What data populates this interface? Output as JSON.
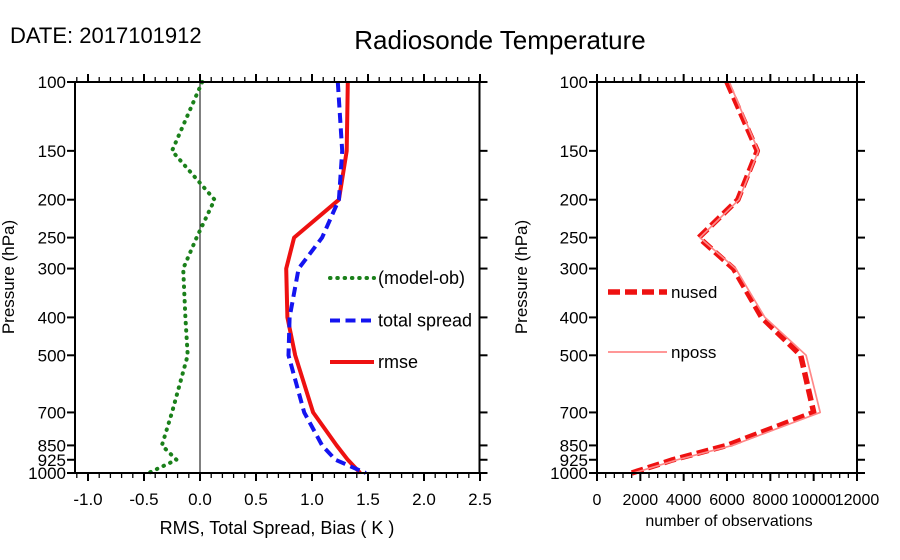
{
  "header": {
    "date_label": "DATE: 2017101912",
    "title": "Radiosonde Temperature"
  },
  "chart_data": [
    {
      "type": "line",
      "panel": "left",
      "title": "",
      "xlabel": "RMS, Total Spread, Bias ( K )",
      "ylabel": "Pressure (hPa)",
      "y_scale": "log",
      "ylim": [
        100,
        1000
      ],
      "xlim": [
        -1.12,
        2.51
      ],
      "zero_line": true,
      "pressure_levels": [
        100,
        150,
        200,
        250,
        300,
        400,
        500,
        700,
        850,
        925,
        1000
      ],
      "xticks": [
        -1.0,
        -0.5,
        0.0,
        0.5,
        1.0,
        1.5,
        2.0,
        2.5
      ],
      "xtick_labels": [
        "-1.0",
        "-0.5",
        "0.0",
        "0.5",
        "1.0",
        "1.5",
        "2.0",
        "2.5"
      ],
      "legend_position": "inside-center-right",
      "series": [
        {
          "name": "(model-ob)",
          "style": "dotted",
          "color": "#1a801a",
          "values": [
            0.02,
            -0.25,
            0.13,
            -0.03,
            -0.15,
            -0.13,
            -0.11,
            -0.25,
            -0.34,
            -0.21,
            -0.46
          ]
        },
        {
          "name": "total spread",
          "style": "dashed",
          "color": "#1414f0",
          "values": [
            1.23,
            1.27,
            1.24,
            1.09,
            0.88,
            0.8,
            0.79,
            0.93,
            1.09,
            1.21,
            1.48
          ]
        },
        {
          "name": "rmse",
          "style": "solid",
          "color": "#ee1111",
          "values": [
            1.32,
            1.31,
            1.24,
            0.84,
            0.77,
            0.78,
            0.85,
            1.01,
            1.22,
            1.32,
            1.43
          ]
        }
      ]
    },
    {
      "type": "line",
      "panel": "right",
      "title": "",
      "xlabel": "number of observations",
      "ylabel": "Pressure (hPa)",
      "y_scale": "log",
      "ylim": [
        100,
        1000
      ],
      "xlim": [
        0,
        12000
      ],
      "zero_line": false,
      "pressure_levels": [
        100,
        150,
        200,
        250,
        300,
        400,
        500,
        700,
        850,
        925,
        1000
      ],
      "xticks": [
        0,
        2000,
        4000,
        6000,
        8000,
        10000,
        12000
      ],
      "xtick_labels": [
        "0",
        "2000",
        "4000",
        "6000",
        "8000",
        "10000",
        "12000"
      ],
      "legend_position": "inside-center-left",
      "series": [
        {
          "name": "nused",
          "style": "dashed-thick",
          "color": "#ee1111",
          "values": [
            6000,
            7400,
            6500,
            4700,
            6300,
            7600,
            9400,
            10000,
            6000,
            3500,
            1600
          ]
        },
        {
          "name": "nposs",
          "style": "thin",
          "color": "#ff8888",
          "values": [
            6100,
            7450,
            6550,
            4750,
            6400,
            7750,
            9650,
            10300,
            6250,
            3700,
            1700
          ]
        }
      ]
    }
  ]
}
